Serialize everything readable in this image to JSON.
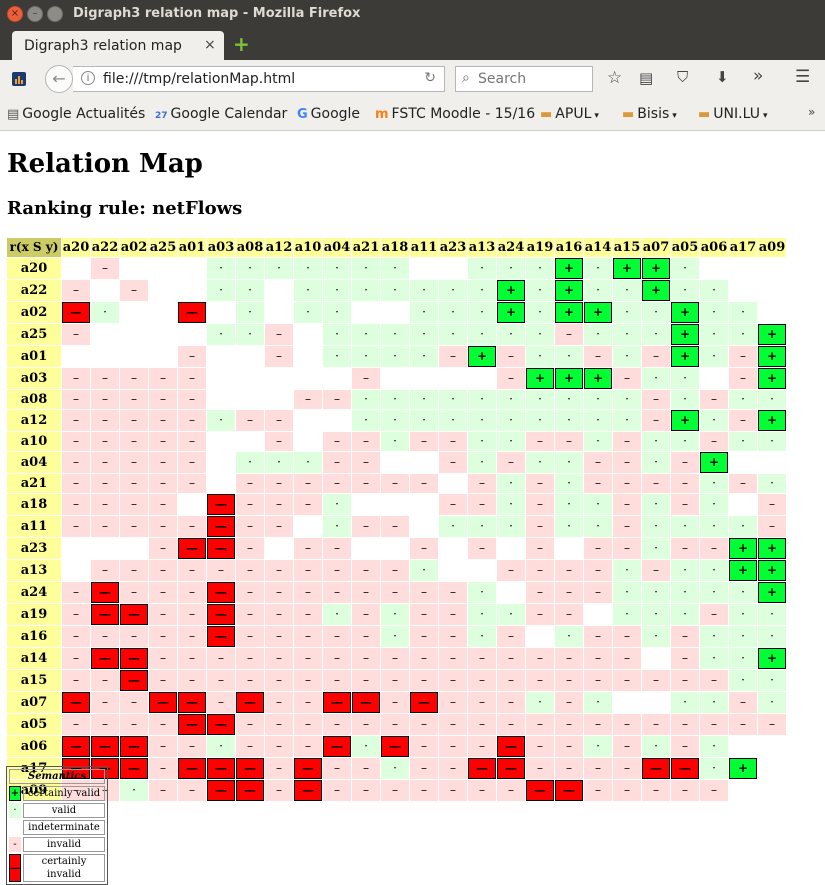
{
  "window": {
    "title": "Digraph3 relation map - Mozilla Firefox"
  },
  "tab": {
    "label": "Digraph3 relation map",
    "close": "×",
    "new_tab": "+"
  },
  "nav": {
    "url": "file:///tmp/relationMap.html",
    "search_placeholder": "Search"
  },
  "bookmarks": [
    {
      "label": "Google Actualités",
      "icon": "news-icon"
    },
    {
      "label": "Google Calendar",
      "icon": "calendar-icon"
    },
    {
      "label": "Google",
      "icon": "google-icon"
    },
    {
      "label": "FSTC Moodle - 15/16",
      "icon": "moodle-icon"
    },
    {
      "label": "APUL",
      "icon": "folder-icon",
      "dropdown": true
    },
    {
      "label": "Bisis",
      "icon": "folder-icon",
      "dropdown": true
    },
    {
      "label": "UNI.LU",
      "icon": "folder-icon",
      "dropdown": true
    }
  ],
  "page": {
    "title": "Relation Map",
    "subtitle": "Ranking rule: netFlows",
    "corner": "r(x S y)",
    "headers": [
      "a20",
      "a22",
      "a02",
      "a25",
      "a01",
      "a03",
      "a08",
      "a12",
      "a10",
      "a04",
      "a21",
      "a18",
      "a11",
      "a23",
      "a13",
      "a24",
      "a19",
      "a16",
      "a14",
      "a15",
      "a07",
      "a05",
      "a06",
      "a17",
      "a09"
    ],
    "rows": [
      {
        "label": "a20",
        "cells": "_-___.......__...+.++."
      },
      {
        "label": "a22",
        "cells": "-_-__.._.......+.+..+.."
      },
      {
        "label": "a02",
        "cells": "=.__=_._..__...+.++..+.."
      },
      {
        "label": "a25",
        "cells": "-____..-_........-...+..+."
      },
      {
        "label": "a01",
        "cells": "____-__-_....-+-..-.-+.-++"
      },
      {
        "label": "a03",
        "cells": "-----_____-____-+++-.._-++"
      },
      {
        "label": "a08",
        "cells": "-----___--..........-.-..."
      },
      {
        "label": "a12",
        "cells": "-----.--__..........-+.-++"
      },
      {
        "label": "a10",
        "cells": "-----__-_--.--..--.-..-..."
      },
      {
        "label": "a04",
        "cells": "-----_...--__-.-..--.-+__."
      },
      {
        "label": "a21",
        "cells": "-----_-------_-.-.----.-.."
      },
      {
        "label": "a18",
        "cells": "----_=---.___--.-..-.-._-."
      },
      {
        "label": "a11",
        "cells": "-----=--_.--_...-..-....-."
      },
      {
        "label": "a23",
        "cells": "___-==-_--__-_-_-_--.--++"
      },
      {
        "label": "a13",
        "cells": "_-----------.__----.-..++"
      },
      {
        "label": "a24",
        "cells": "-=---=--------._---.....+_."
      },
      {
        "label": "a19",
        "cells": "-==--=---.-.--..--_...-..."
      },
      {
        "label": "a16",
        "cells": "-----=-----.--.-_.--.-..."
      },
      {
        "label": "a14",
        "cells": "-==-----------------_-..+_"
      },
      {
        "label": "a15",
        "cells": "--=--------------------..+_"
      },
      {
        "label": "a07",
        "cells": "=--==-=--==-=---.-.__..-."
      },
      {
        "label": "a05",
        "cells": "----==-------------------_-_"
      },
      {
        "label": "a06",
        "cells": "===--.---=.=---=--.-.-.__=."
      },
      {
        "label": "a17",
        "cells": "===-===-=--.--==----==.+__-"
      },
      {
        "label": "a09",
        "cells": "--.--==-=-------==-----__--"
      }
    ],
    "legend": {
      "header": "Semantics",
      "items": [
        {
          "cls": "cp",
          "symbol": "+",
          "label": "certainly valid"
        },
        {
          "cls": "pl",
          "symbol": "·",
          "label": "valid"
        },
        {
          "cls": "ind",
          "symbol": "",
          "label": "indeterminate"
        },
        {
          "cls": "mi",
          "symbol": "-",
          "label": "invalid"
        },
        {
          "cls": "cm",
          "symbol": "—",
          "label": "certainly invalid"
        }
      ]
    }
  }
}
